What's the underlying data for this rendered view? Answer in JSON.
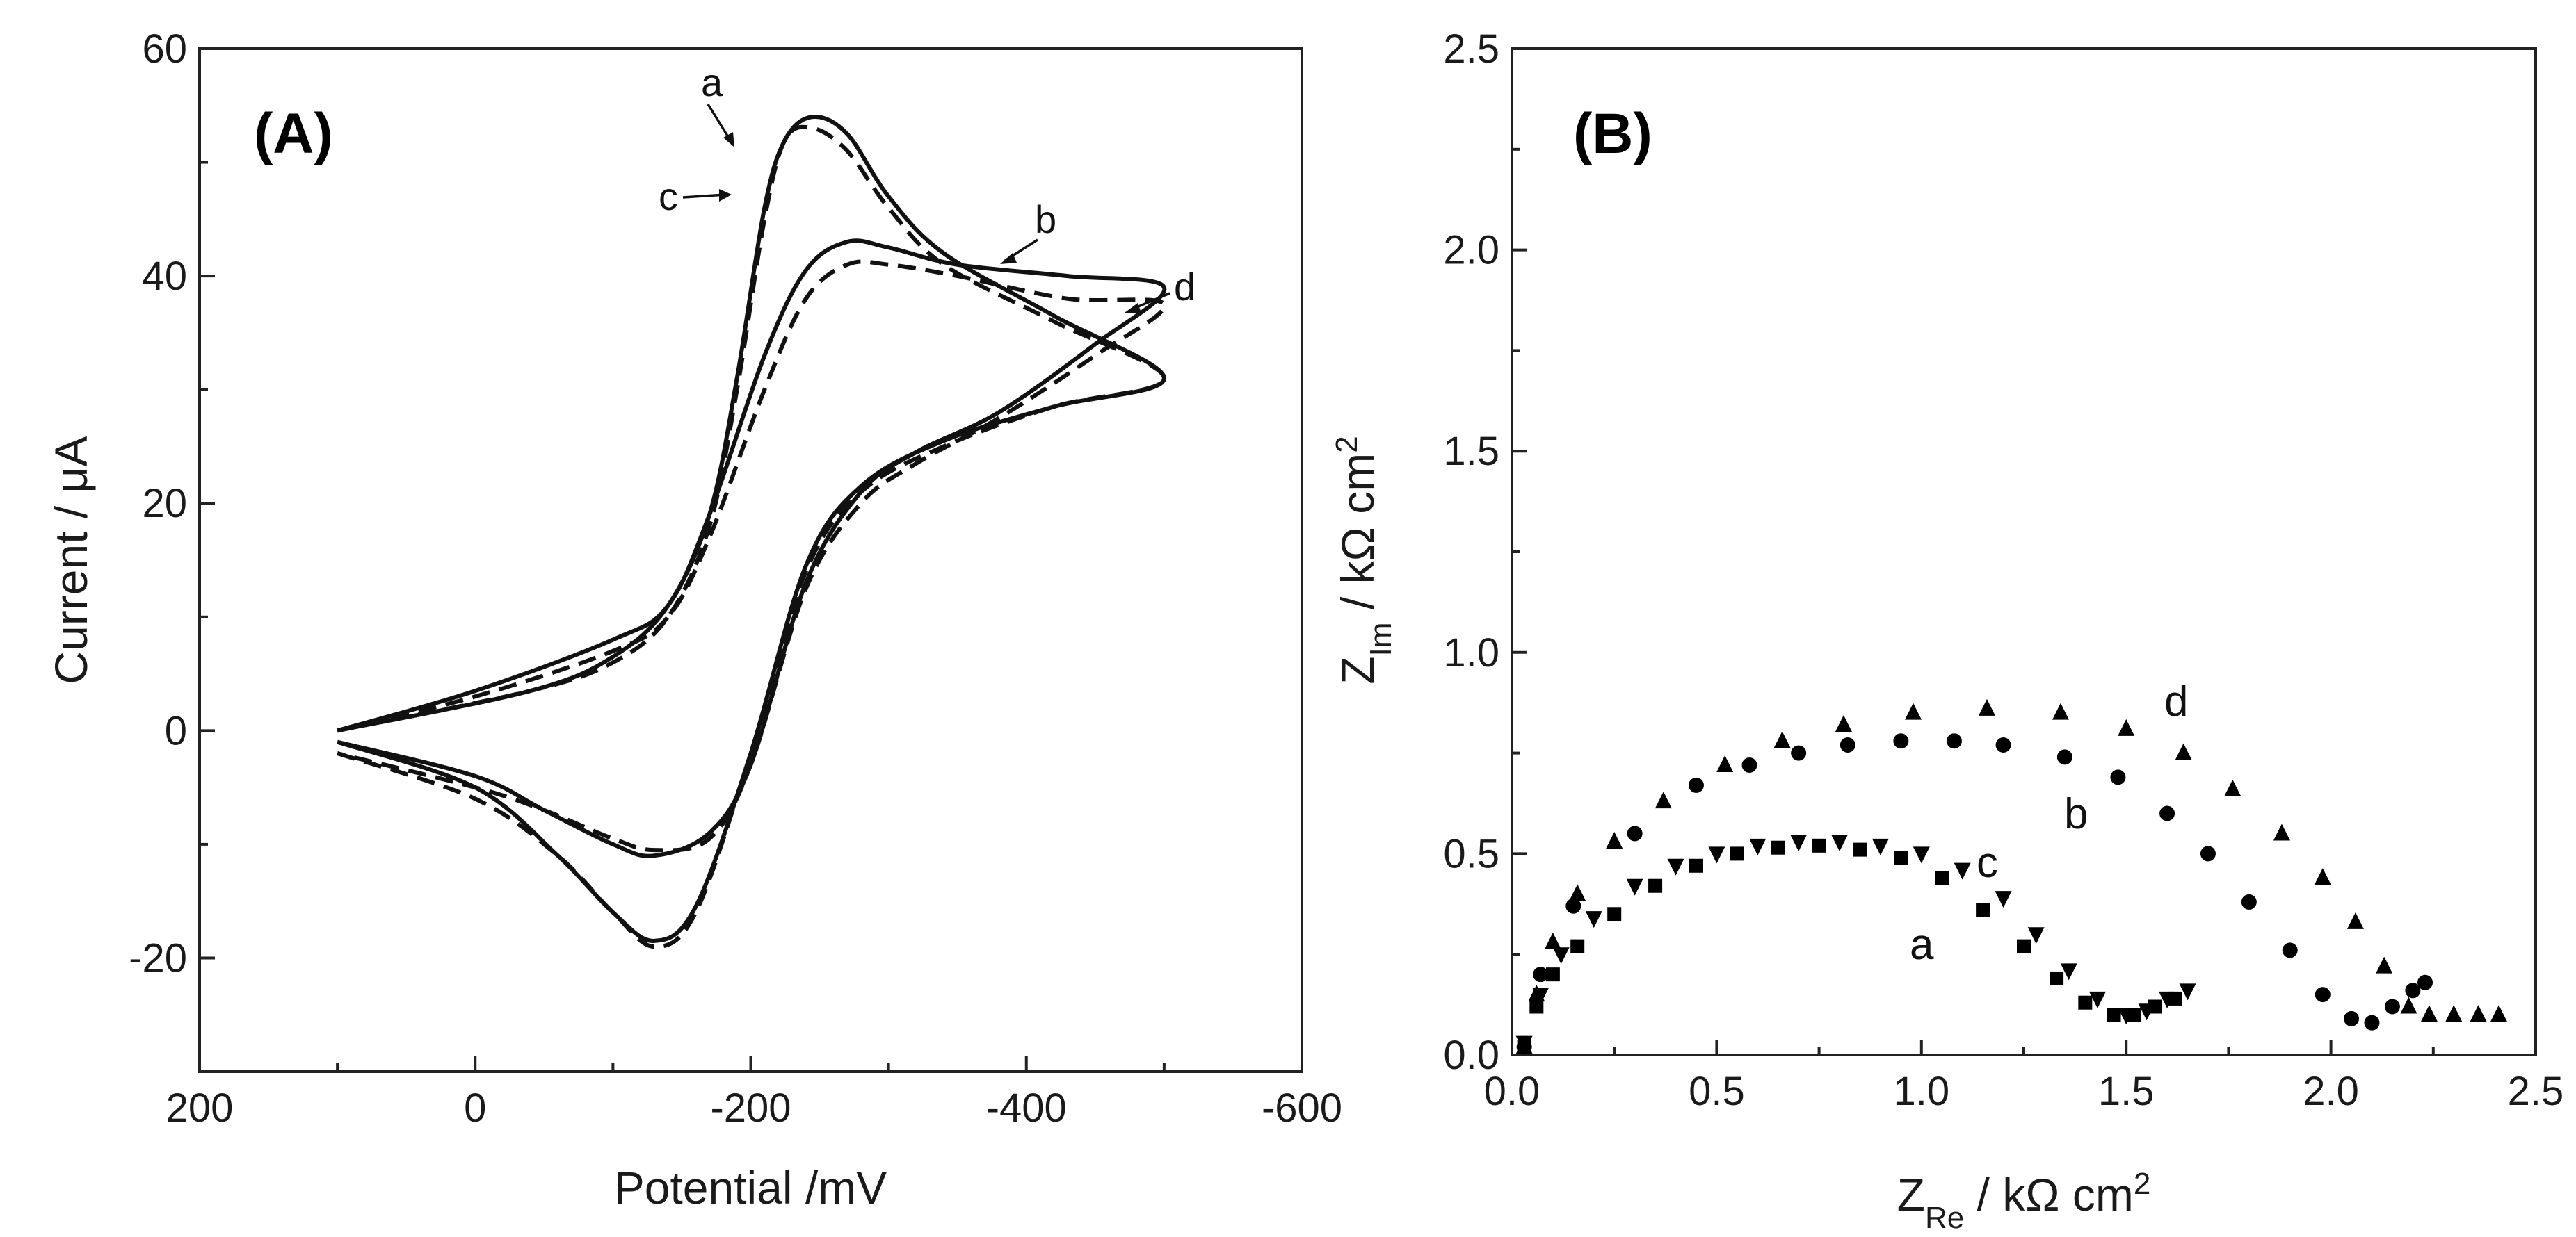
{
  "chart_data": [
    {
      "type": "line",
      "panel_label": "(A)",
      "xlabel": "Potential /mV",
      "ylabel": "Current / μA",
      "xlim": [
        200,
        -600
      ],
      "ylim": [
        -30,
        60
      ],
      "x_ticks": [
        "200",
        "0",
        "-200",
        "-400",
        "-600"
      ],
      "y_ticks": [
        "60",
        "40",
        "20",
        "0",
        "-20"
      ],
      "series": [
        {
          "name": "a",
          "style": "dashed",
          "points": [
            [
              100,
              -2
            ],
            [
              0,
              -6
            ],
            [
              -60,
              -11
            ],
            [
              -100,
              -16
            ],
            [
              -130,
              -19
            ],
            [
              -160,
              -16
            ],
            [
              -200,
              -2
            ],
            [
              -240,
              14
            ],
            [
              -280,
              21
            ],
            [
              -340,
              25
            ],
            [
              -420,
              28.5
            ],
            [
              -500,
              31
            ],
            [
              -420,
              36
            ],
            [
              -340,
              41
            ],
            [
              -300,
              46
            ],
            [
              -270,
              51
            ],
            [
              -245,
              53
            ],
            [
              -225,
              52
            ],
            [
              -210,
              45
            ],
            [
              -190,
              30
            ],
            [
              -170,
              18
            ],
            [
              -140,
              10
            ],
            [
              -100,
              6
            ],
            [
              -40,
              3.5
            ],
            [
              100,
              0
            ]
          ]
        },
        {
          "name": "b",
          "style": "solid",
          "points": [
            [
              100,
              0
            ],
            [
              0,
              3.5
            ],
            [
              -100,
              8
            ],
            [
              -140,
              11
            ],
            [
              -170,
              19
            ],
            [
              -210,
              33
            ],
            [
              -240,
              40.5
            ],
            [
              -270,
              43
            ],
            [
              -300,
              42.5
            ],
            [
              -350,
              41
            ],
            [
              -430,
              40
            ],
            [
              -500,
              39
            ],
            [
              -450,
              34
            ],
            [
              -380,
              28
            ],
            [
              -320,
              24.5
            ],
            [
              -280,
              21
            ],
            [
              -240,
              13
            ],
            [
              -200,
              -3
            ],
            [
              -170,
              -9
            ],
            [
              -130,
              -11
            ],
            [
              -100,
              -10
            ],
            [
              -50,
              -7
            ],
            [
              0,
              -4
            ],
            [
              100,
              -1
            ]
          ]
        },
        {
          "name": "c",
          "style": "solid",
          "points": [
            [
              100,
              -1
            ],
            [
              0,
              -5
            ],
            [
              -60,
              -11
            ],
            [
              -100,
              -16
            ],
            [
              -130,
              -18.5
            ],
            [
              -160,
              -15.5
            ],
            [
              -200,
              -2
            ],
            [
              -240,
              14.5
            ],
            [
              -280,
              21.5
            ],
            [
              -340,
              25.5
            ],
            [
              -420,
              28.5
            ],
            [
              -500,
              31
            ],
            [
              -420,
              36.5
            ],
            [
              -340,
              42
            ],
            [
              -300,
              47
            ],
            [
              -270,
              52.5
            ],
            [
              -245,
              54
            ],
            [
              -225,
              52
            ],
            [
              -210,
              46
            ],
            [
              -190,
              31
            ],
            [
              -170,
              19
            ],
            [
              -140,
              11
            ],
            [
              -100,
              6.5
            ],
            [
              -40,
              3.5
            ],
            [
              100,
              0
            ]
          ]
        },
        {
          "name": "d",
          "style": "dashed",
          "points": [
            [
              100,
              0
            ],
            [
              0,
              3
            ],
            [
              -100,
              7
            ],
            [
              -140,
              10
            ],
            [
              -170,
              17
            ],
            [
              -210,
              30
            ],
            [
              -240,
              38
            ],
            [
              -270,
              41
            ],
            [
              -300,
              41
            ],
            [
              -350,
              40
            ],
            [
              -430,
              38
            ],
            [
              -500,
              37.5
            ],
            [
              -450,
              33
            ],
            [
              -380,
              27.5
            ],
            [
              -320,
              23.5
            ],
            [
              -280,
              20
            ],
            [
              -240,
              12.5
            ],
            [
              -200,
              -3
            ],
            [
              -170,
              -9.5
            ],
            [
              -130,
              -10.5
            ],
            [
              -100,
              -9.5
            ],
            [
              -50,
              -7
            ],
            [
              0,
              -5
            ],
            [
              100,
              -2
            ]
          ]
        }
      ]
    },
    {
      "type": "scatter",
      "panel_label": "(B)",
      "xlabel": "ZRe / kΩ cm2",
      "ylabel": "ZIm / kΩ cm2",
      "xlim": [
        0,
        2.5
      ],
      "ylim": [
        0,
        2.5
      ],
      "x_ticks": [
        "0.0",
        "0.5",
        "1.0",
        "1.5",
        "2.0",
        "2.5"
      ],
      "y_ticks": [
        "0.0",
        "0.5",
        "1.0",
        "1.5",
        "2.0",
        "2.5"
      ],
      "series": [
        {
          "name": "a",
          "marker": "square",
          "points": [
            [
              0.03,
              0.02
            ],
            [
              0.06,
              0.12
            ],
            [
              0.1,
              0.2
            ],
            [
              0.16,
              0.27
            ],
            [
              0.25,
              0.35
            ],
            [
              0.35,
              0.42
            ],
            [
              0.45,
              0.47
            ],
            [
              0.55,
              0.5
            ],
            [
              0.65,
              0.515
            ],
            [
              0.75,
              0.52
            ],
            [
              0.85,
              0.51
            ],
            [
              0.95,
              0.49
            ],
            [
              1.05,
              0.44
            ],
            [
              1.15,
              0.36
            ],
            [
              1.25,
              0.27
            ],
            [
              1.33,
              0.19
            ],
            [
              1.4,
              0.13
            ],
            [
              1.47,
              0.1
            ],
            [
              1.52,
              0.1
            ],
            [
              1.57,
              0.12
            ],
            [
              1.62,
              0.14
            ]
          ]
        },
        {
          "name": "b",
          "marker": "circle",
          "points": [
            [
              0.03,
              0.02
            ],
            [
              0.07,
              0.2
            ],
            [
              0.15,
              0.37
            ],
            [
              0.3,
              0.55
            ],
            [
              0.45,
              0.67
            ],
            [
              0.58,
              0.72
            ],
            [
              0.7,
              0.75
            ],
            [
              0.82,
              0.77
            ],
            [
              0.95,
              0.78
            ],
            [
              1.08,
              0.78
            ],
            [
              1.2,
              0.77
            ],
            [
              1.35,
              0.74
            ],
            [
              1.48,
              0.69
            ],
            [
              1.6,
              0.6
            ],
            [
              1.7,
              0.5
            ],
            [
              1.8,
              0.38
            ],
            [
              1.9,
              0.26
            ],
            [
              1.98,
              0.15
            ],
            [
              2.05,
              0.09
            ],
            [
              2.1,
              0.08
            ],
            [
              2.15,
              0.12
            ],
            [
              2.2,
              0.16
            ],
            [
              2.23,
              0.18
            ]
          ]
        },
        {
          "name": "c",
          "marker": "triangle-down",
          "points": [
            [
              0.03,
              0.03
            ],
            [
              0.07,
              0.15
            ],
            [
              0.12,
              0.25
            ],
            [
              0.2,
              0.34
            ],
            [
              0.3,
              0.42
            ],
            [
              0.4,
              0.47
            ],
            [
              0.5,
              0.5
            ],
            [
              0.6,
              0.52
            ],
            [
              0.7,
              0.53
            ],
            [
              0.8,
              0.53
            ],
            [
              0.9,
              0.52
            ],
            [
              1.0,
              0.5
            ],
            [
              1.1,
              0.46
            ],
            [
              1.2,
              0.39
            ],
            [
              1.28,
              0.3
            ],
            [
              1.36,
              0.21
            ],
            [
              1.43,
              0.14
            ],
            [
              1.5,
              0.1
            ],
            [
              1.55,
              0.11
            ],
            [
              1.6,
              0.14
            ],
            [
              1.65,
              0.16
            ]
          ]
        },
        {
          "name": "d",
          "marker": "triangle-up",
          "points": [
            [
              0.03,
              0.02
            ],
            [
              0.06,
              0.15
            ],
            [
              0.1,
              0.28
            ],
            [
              0.16,
              0.4
            ],
            [
              0.25,
              0.53
            ],
            [
              0.37,
              0.63
            ],
            [
              0.52,
              0.72
            ],
            [
              0.66,
              0.78
            ],
            [
              0.81,
              0.82
            ],
            [
              0.98,
              0.85
            ],
            [
              1.16,
              0.86
            ],
            [
              1.34,
              0.85
            ],
            [
              1.5,
              0.81
            ],
            [
              1.64,
              0.75
            ],
            [
              1.76,
              0.66
            ],
            [
              1.88,
              0.55
            ],
            [
              1.98,
              0.44
            ],
            [
              2.06,
              0.33
            ],
            [
              2.13,
              0.22
            ],
            [
              2.19,
              0.12
            ],
            [
              2.24,
              0.1
            ],
            [
              2.3,
              0.1
            ],
            [
              2.36,
              0.1
            ],
            [
              2.41,
              0.1
            ]
          ]
        }
      ]
    }
  ]
}
